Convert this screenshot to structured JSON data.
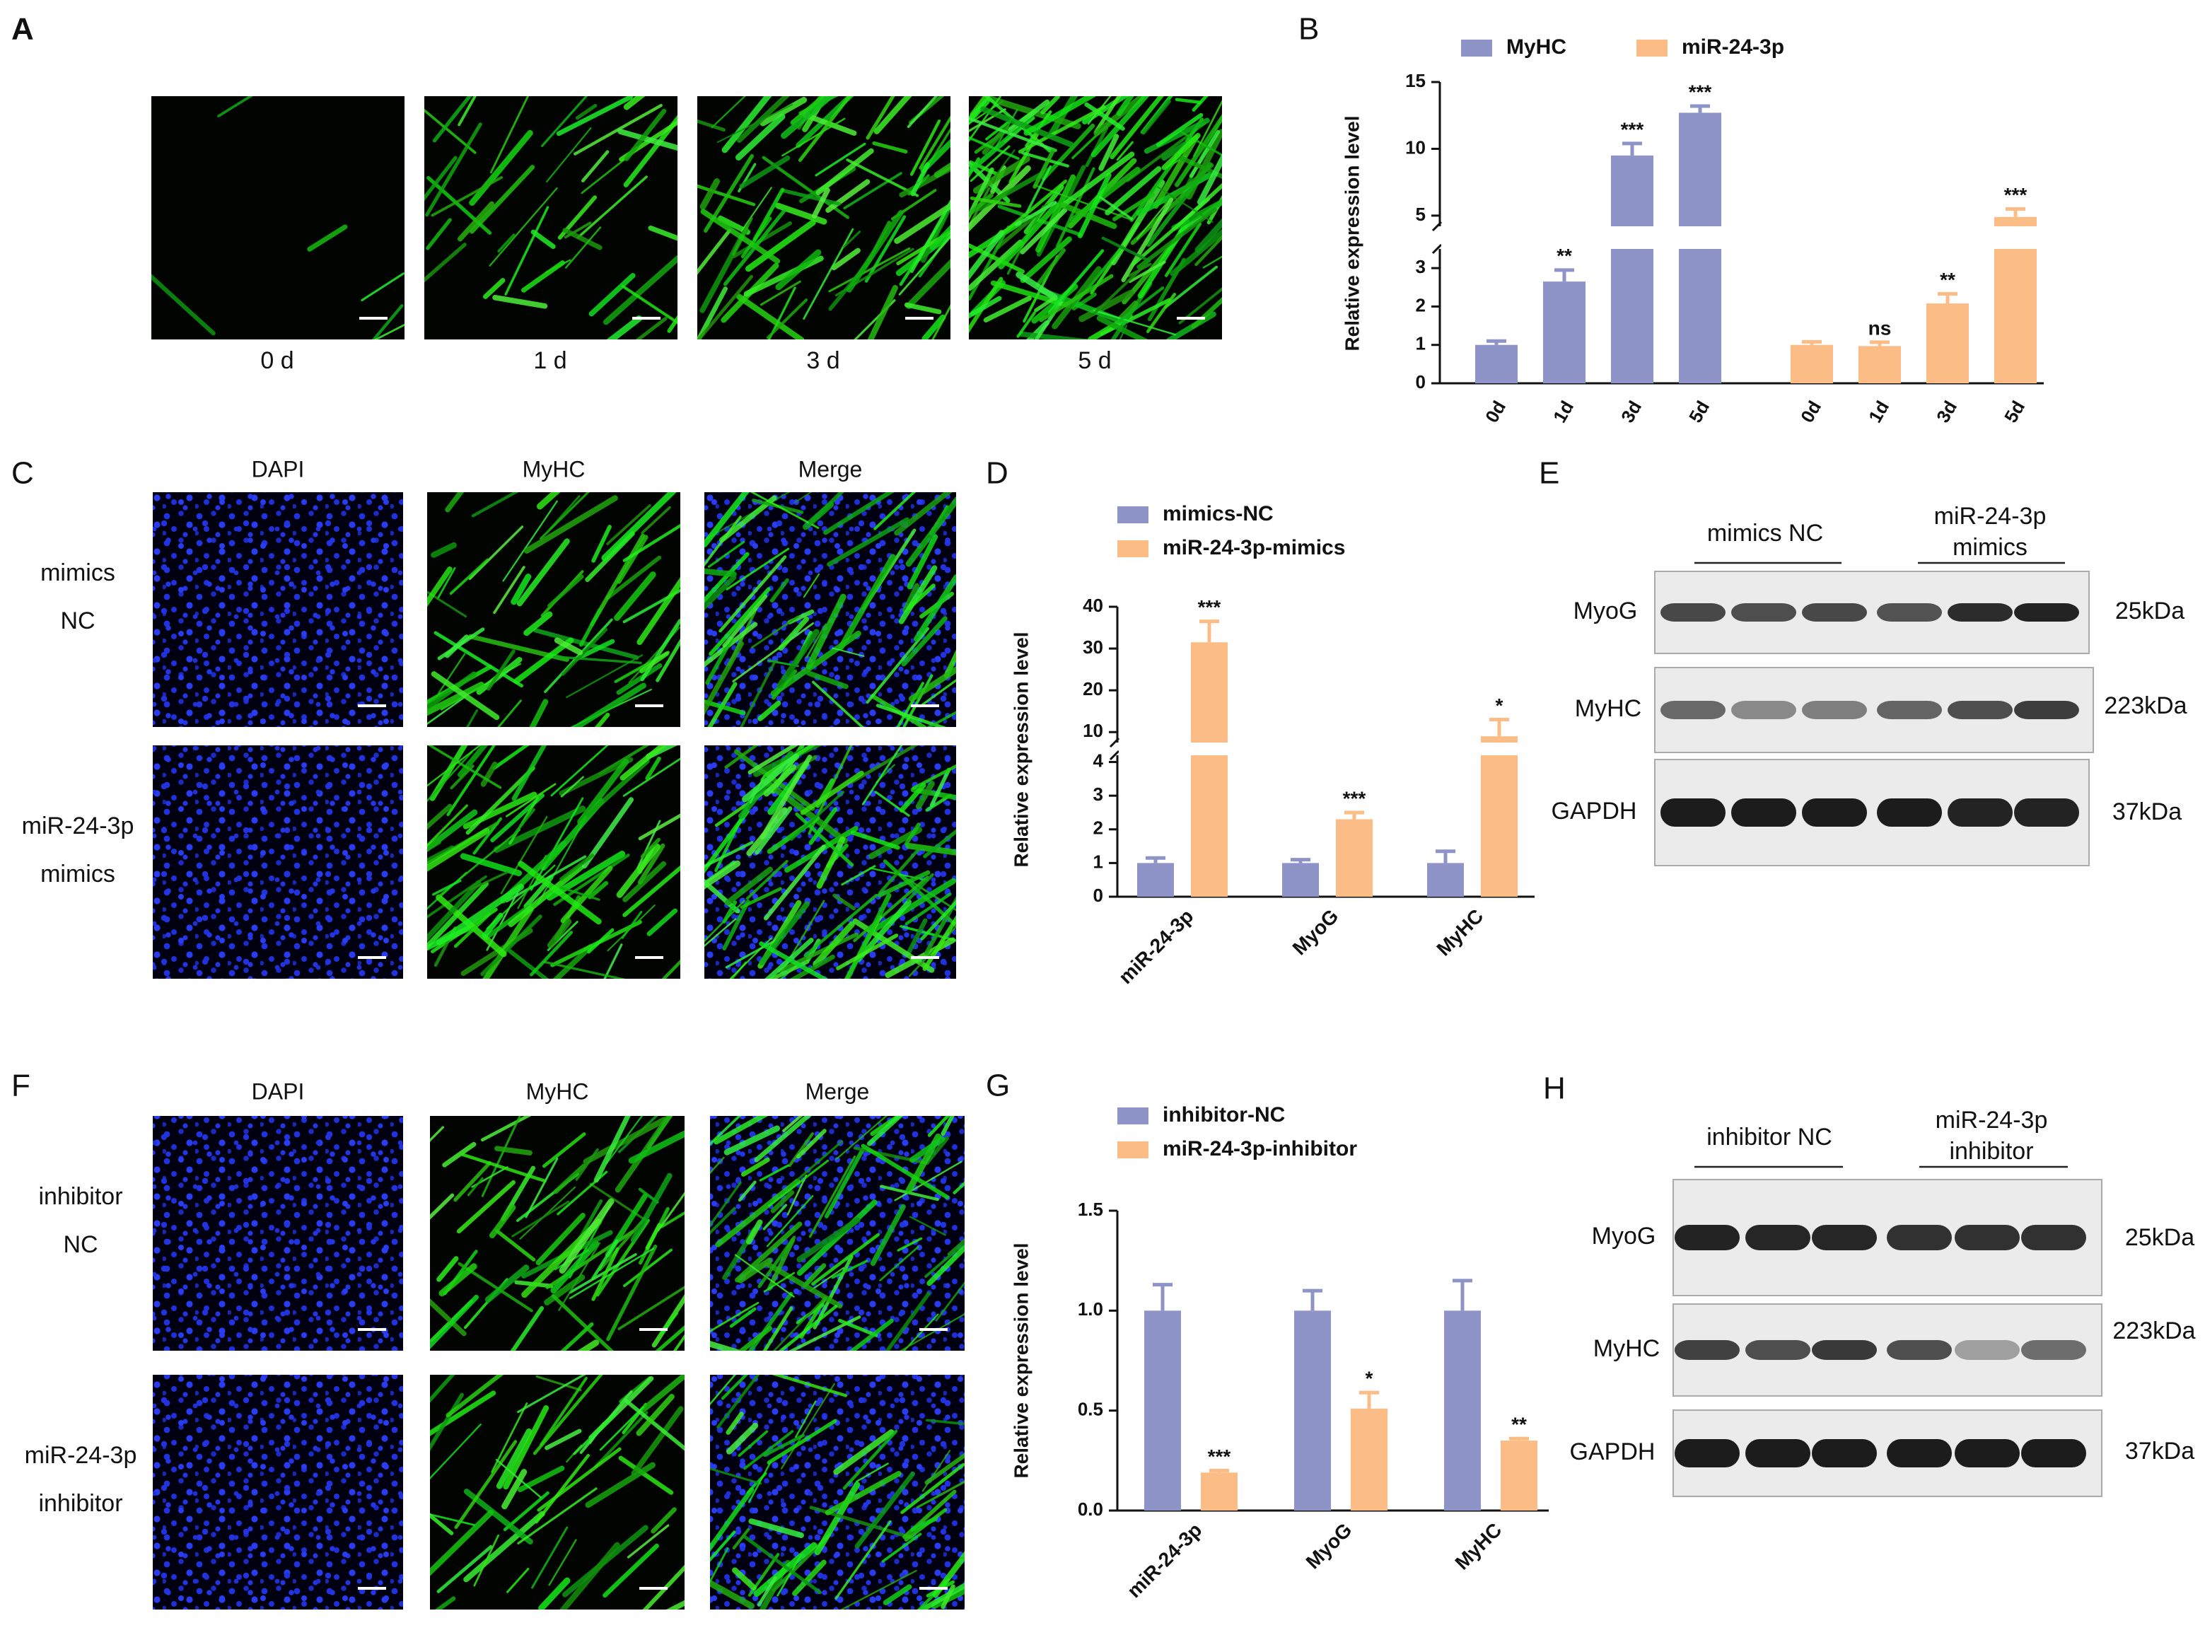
{
  "panels": {
    "A": {
      "letter": "A",
      "captions": [
        "0 d",
        "1 d",
        "3 d",
        "5 d"
      ]
    },
    "B": {
      "letter": "B"
    },
    "C": {
      "letter": "C",
      "columns": [
        "DAPI",
        "MyHC",
        "Merge"
      ],
      "rows": [
        [
          "mimics",
          "NC"
        ],
        [
          "miR-24-3p",
          "mimics"
        ]
      ]
    },
    "D": {
      "letter": "D"
    },
    "E": {
      "letter": "E",
      "groups": [
        [
          "mimics NC"
        ],
        [
          "miR-24-3p",
          "mimics"
        ]
      ],
      "proteins": [
        "MyoG",
        "MyHC",
        "GAPDH"
      ],
      "sizes": [
        "25kDa",
        "223kDa",
        "37kDa"
      ]
    },
    "F": {
      "letter": "F",
      "columns": [
        "DAPI",
        "MyHC",
        "Merge"
      ],
      "rows": [
        [
          "inhibitor",
          "NC"
        ],
        [
          "miR-24-3p",
          "inhibitor"
        ]
      ]
    },
    "G": {
      "letter": "G"
    },
    "H": {
      "letter": "H",
      "groups": [
        [
          "inhibitor NC"
        ],
        [
          "miR-24-3p",
          "inhibitor"
        ]
      ],
      "proteins": [
        "MyoG",
        "MyHC",
        "GAPDH"
      ],
      "sizes": [
        "25kDa",
        "223kDa",
        "37kDa"
      ]
    }
  },
  "chart_data": [
    {
      "type": "bar",
      "group_by": "series",
      "y_label": "Relative expression level",
      "categories": [
        "0d",
        "1d",
        "3d",
        "5d"
      ],
      "series": [
        {
          "name": "MyHC",
          "color": "#8e93c8",
          "values": [
            1,
            2.65,
            9.5,
            12.7
          ],
          "errors": [
            0.1,
            0.3,
            0.9,
            0.5
          ],
          "labels": [
            null,
            "**",
            "***",
            "***"
          ]
        },
        {
          "name": "miR-24-3p",
          "color": "#fbbd85",
          "values": [
            1,
            0.97,
            2.08,
            4.9
          ],
          "errors": [
            0.08,
            0.1,
            0.25,
            0.6
          ],
          "labels": [
            null,
            "ns",
            "**",
            "***"
          ]
        }
      ],
      "segments": [
        {
          "ylim": [
            0,
            3.5
          ],
          "yticks": [
            0,
            1,
            2,
            3
          ]
        },
        {
          "ylim": [
            4.2,
            15
          ],
          "yticks": [
            5,
            10,
            15
          ]
        }
      ],
      "legend": "top"
    },
    {
      "type": "bar",
      "group_by": "category",
      "y_label": "Relative expression level",
      "categories": [
        "miR-24-3p",
        "MyoG",
        "MyHC"
      ],
      "series": [
        {
          "name": "mimics-NC",
          "color": "#8e93c8",
          "values": [
            1,
            1,
            1
          ],
          "errors": [
            0.15,
            0.1,
            0.35
          ],
          "labels": [
            null,
            null,
            null
          ]
        },
        {
          "name": "miR-24-3p-mimics",
          "color": "#fbbd85",
          "values": [
            31.5,
            2.3,
            9
          ],
          "errors": [
            5,
            0.2,
            4
          ],
          "labels": [
            "***",
            "***",
            "*"
          ]
        }
      ],
      "segments": [
        {
          "ylim": [
            0,
            4.2
          ],
          "yticks": [
            0,
            1,
            2,
            3,
            4
          ]
        },
        {
          "ylim": [
            7.5,
            40
          ],
          "yticks": [
            10,
            20,
            30,
            40
          ]
        }
      ],
      "legend": "top-left"
    },
    {
      "type": "bar",
      "group_by": "category",
      "y_label": "Relative expression level",
      "categories": [
        "miR-24-3p",
        "MyoG",
        "MyHC"
      ],
      "series": [
        {
          "name": "inhibitor-NC",
          "color": "#8e93c8",
          "values": [
            1,
            1,
            1
          ],
          "errors": [
            0.13,
            0.1,
            0.15
          ],
          "labels": [
            null,
            null,
            null
          ]
        },
        {
          "name": "miR-24-3p-inhibitor",
          "color": "#fbbd85",
          "values": [
            0.19,
            0.51,
            0.35
          ],
          "errors": [
            0.01,
            0.08,
            0.01
          ],
          "labels": [
            "***",
            "*",
            "**"
          ]
        }
      ],
      "ylim": [
        0,
        1.5
      ],
      "yticks": [
        {
          "value": 0,
          "label": "0.0"
        },
        0.5,
        {
          "value": 1,
          "label": "1.0"
        },
        1.5
      ],
      "legend": "top-left"
    }
  ]
}
